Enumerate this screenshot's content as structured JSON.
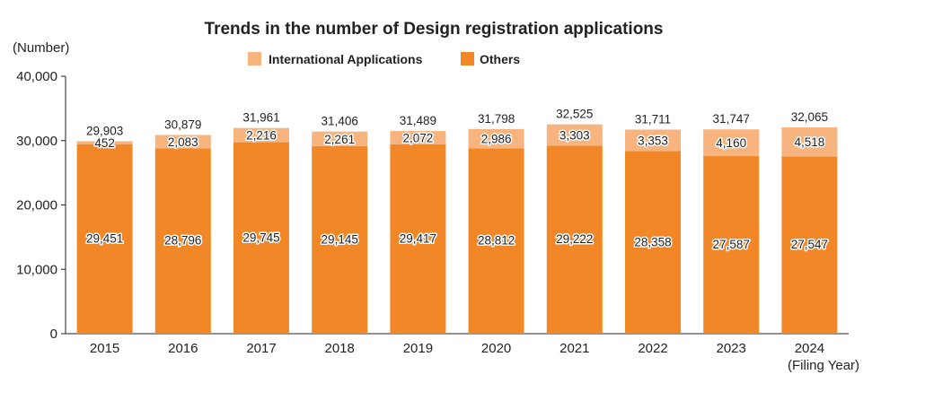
{
  "chart_data": {
    "type": "bar",
    "stacked": true,
    "title": "Trends in the number of Design registration applications",
    "ylabel": "(Number)",
    "xlabel": "(Filing Year)",
    "ylim": [
      0,
      40000
    ],
    "yticks": [
      "0",
      "10,000",
      "20,000",
      "30,000",
      "40,000"
    ],
    "ytick_values": [
      0,
      10000,
      20000,
      30000,
      40000
    ],
    "categories": [
      "2015",
      "2016",
      "2017",
      "2018",
      "2019",
      "2020",
      "2021",
      "2022",
      "2023",
      "2024"
    ],
    "series": [
      {
        "name": "Others",
        "color": "#f28728",
        "values": [
          29451,
          28796,
          29745,
          29145,
          29417,
          28812,
          29222,
          28358,
          27587,
          27547
        ],
        "labels": [
          "29,451",
          "28,796",
          "29,745",
          "29,145",
          "29,417",
          "28,812",
          "29,222",
          "28,358",
          "27,587",
          "27,547"
        ]
      },
      {
        "name": "International Applications",
        "color": "#f8b47e",
        "values": [
          452,
          2083,
          2216,
          2261,
          2072,
          2986,
          3303,
          3353,
          4160,
          4518
        ],
        "labels": [
          "452",
          "2,083",
          "2,216",
          "2,261",
          "2,072",
          "2,986",
          "3,303",
          "3,353",
          "4,160",
          "4,518"
        ]
      }
    ],
    "totals": [
      29903,
      30879,
      31961,
      31406,
      31489,
      31798,
      32525,
      31711,
      31747,
      32065
    ],
    "total_labels": [
      "29,903",
      "30,879",
      "31,961",
      "31,406",
      "31,489",
      "31,798",
      "32,525",
      "31,711",
      "31,747",
      "32,065"
    ],
    "legend": [
      "International Applications",
      "Others"
    ],
    "legend_position": "top-center"
  }
}
